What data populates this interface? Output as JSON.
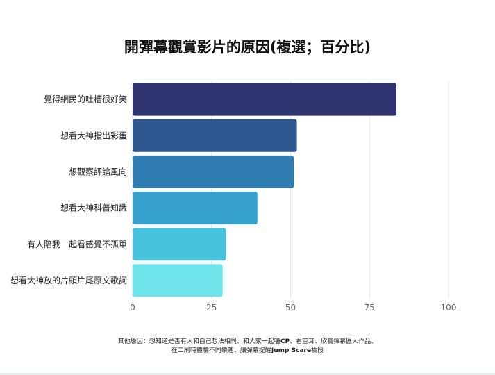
{
  "title": {
    "main": "開彈幕觀賞影片的原因",
    "paren": "(複選；百分比)"
  },
  "chart_data": {
    "type": "bar",
    "orientation": "horizontal",
    "categories": [
      "覺得網民的吐槽很好笑",
      "想看大神指出彩蛋",
      "想觀察評論風向",
      "想看大神科普知識",
      "有人陪我一起看感覺不孤單",
      "想看大神放的片頭片尾原文歌詞"
    ],
    "values": [
      83.5,
      52,
      51,
      39.5,
      29.5,
      28.5
    ],
    "colors": [
      "#2f3470",
      "#2d578e",
      "#2f7db2",
      "#35a0cc",
      "#46c2dc",
      "#6fe4ea"
    ],
    "xlim": [
      0,
      100
    ],
    "xticks": [
      0,
      25,
      50,
      75,
      100
    ],
    "grid": "vertical",
    "legend": "none"
  },
  "footnote": {
    "line1_pre": "其他原因：想知道是否有人和自己想法相同、和大家一起嗑",
    "line1_bold": "CP",
    "line1_post": "、看空耳、欣賞彈幕匠人作品、",
    "line2_pre": "在二刷時體驗不同樂趣、讓彈幕提醒",
    "line2_bold": "Jump Scare",
    "line2_post": "橋段"
  }
}
